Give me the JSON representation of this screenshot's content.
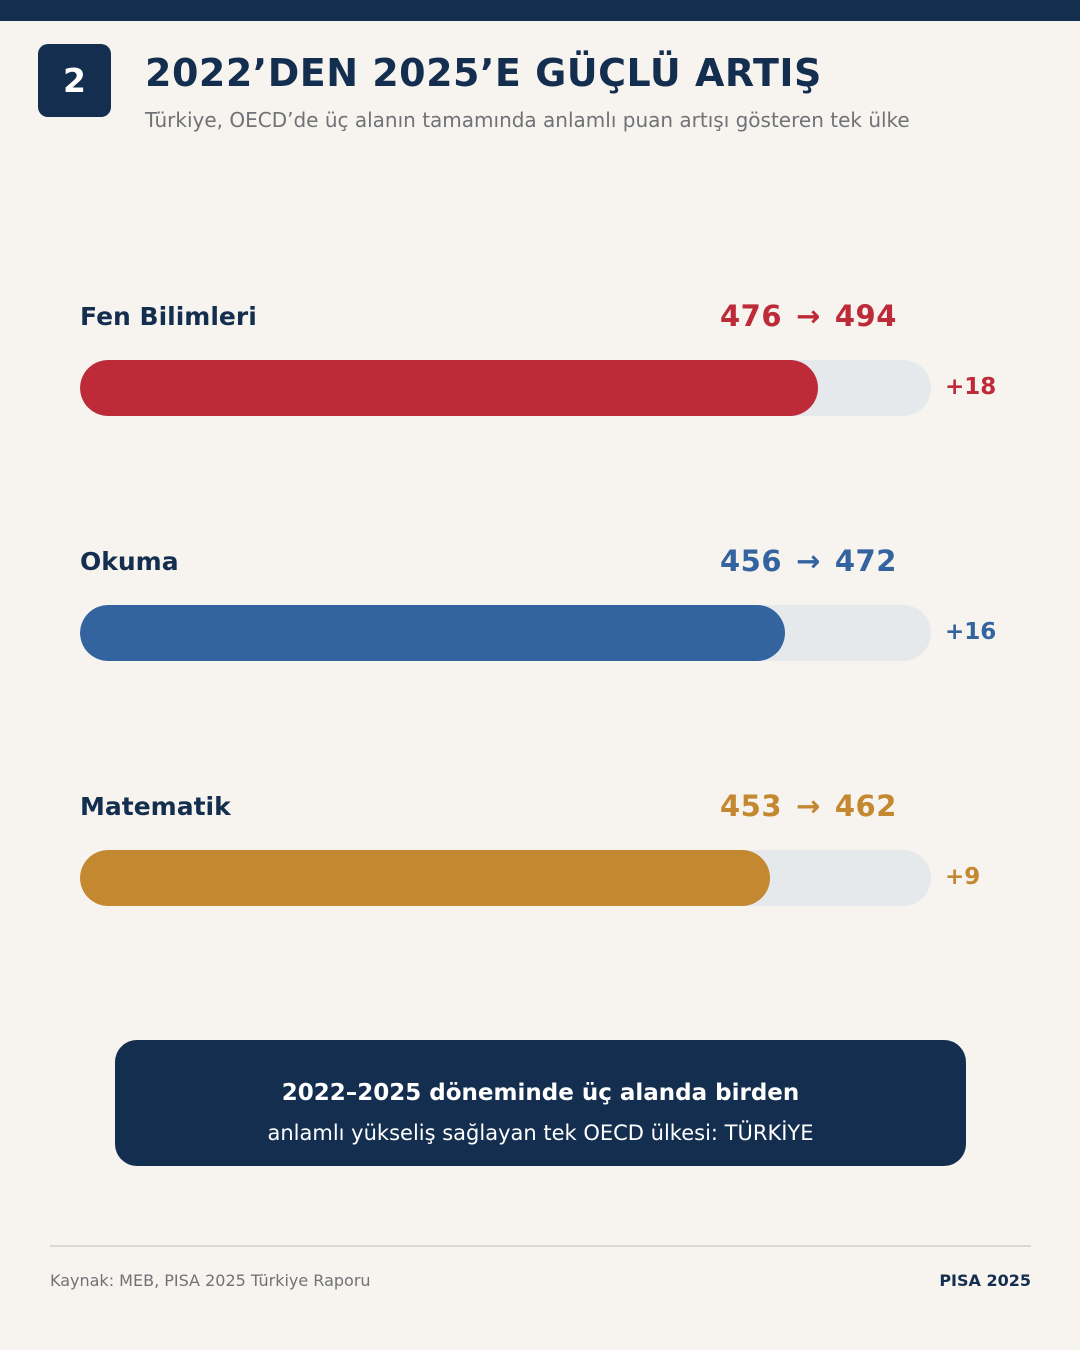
{
  "header": {
    "badge": "2",
    "title": "2022’DEN 2025’E GÜÇLÜ ARTIŞ",
    "subtitle": "Türkiye, OECD’de üç alanın tamamında anlamlı puan artışı gösteren tek ülke"
  },
  "chart_data": {
    "type": "bar",
    "orientation": "horizontal",
    "title": "2022’DEN 2025’E GÜÇLÜ ARTIŞ",
    "xlim": [
      0,
      570
    ],
    "categories": [
      "Fen Bilimleri",
      "Okuma",
      "Matematik"
    ],
    "series": [
      {
        "values": [
          476,
          456,
          453
        ]
      },
      {
        "values": [
          494,
          472,
          462
        ]
      }
    ],
    "deltas": [
      "+18",
      "+16",
      "+9"
    ],
    "arrow": "→",
    "colors": [
      "#bd2a38",
      "#3464a0",
      "#c48831"
    ],
    "track_color": "#e6e9ec"
  },
  "callout": {
    "line1": "2022–2025 döneminde üç alanda birden",
    "line2": "anlamlı yükseliş sağlayan tek OECD ülkesi: TÜRKİYE"
  },
  "footer": {
    "source": "Kaynak: MEB, PISA 2025 Türkiye Raporu",
    "brand": "PISA 2025"
  }
}
